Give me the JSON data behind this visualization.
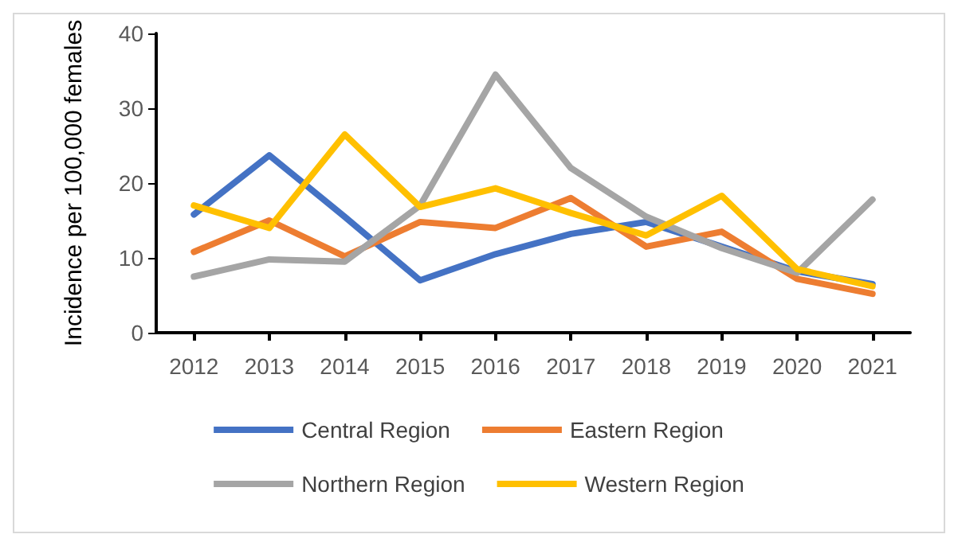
{
  "chart_data": {
    "type": "line",
    "ylabel": "Incidence per 100,000 females",
    "categories": [
      "2012",
      "2013",
      "2014",
      "2015",
      "2016",
      "2017",
      "2018",
      "2019",
      "2020",
      "2021"
    ],
    "series": [
      {
        "name": "Central Region",
        "color": "#4472c4",
        "values": [
          15.8,
          23.7,
          15.5,
          7,
          10.5,
          13.2,
          14.8,
          11.5,
          8.2,
          6.5
        ]
      },
      {
        "name": "Eastern Region",
        "color": "#ed7d31",
        "values": [
          10.8,
          15,
          10.2,
          14.8,
          14,
          18,
          11.5,
          13.5,
          7.2,
          5.2
        ]
      },
      {
        "name": "Northern Region",
        "color": "#a5a5a5",
        "values": [
          7.5,
          9.8,
          9.5,
          17,
          34.5,
          22,
          15.5,
          11.3,
          8,
          17.8
        ]
      },
      {
        "name": "Western Region",
        "color": "#ffc000",
        "values": [
          17,
          14,
          26.5,
          16.8,
          19.3,
          16,
          13,
          18.3,
          8.5,
          6.2
        ]
      }
    ],
    "ylim": [
      0,
      40
    ],
    "yticks": [
      0,
      10,
      20,
      30,
      40
    ],
    "grid": false,
    "legend": "bottom",
    "marker": "none",
    "line_style": "solid"
  }
}
